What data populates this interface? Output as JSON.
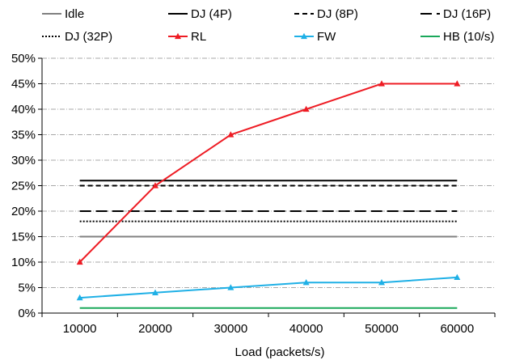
{
  "chart_data": {
    "type": "line",
    "title": "",
    "xlabel": "Load (packets/s)",
    "ylabel": "",
    "x": [
      10000,
      20000,
      30000,
      40000,
      50000,
      60000
    ],
    "x_tick_labels": [
      "10000",
      "20000",
      "30000",
      "40000",
      "50000",
      "60000"
    ],
    "ylim": [
      0,
      50
    ],
    "y_unit": "%",
    "y_ticks": [
      0,
      5,
      10,
      15,
      20,
      25,
      30,
      35,
      40,
      45,
      50
    ],
    "y_tick_labels": [
      "0%",
      "5%",
      "10%",
      "15%",
      "20%",
      "25%",
      "30%",
      "35%",
      "40%",
      "45%",
      "50%"
    ],
    "grid": "horizontal dash-dot",
    "legend_placement": "top",
    "series": [
      {
        "name": "Idle",
        "values": [
          15,
          15,
          15,
          15,
          15,
          15
        ],
        "color": "#808080",
        "dash": "solid",
        "marker": "none"
      },
      {
        "name": "DJ (4P)",
        "values": [
          26,
          26,
          26,
          26,
          26,
          26
        ],
        "color": "#000000",
        "dash": "solid",
        "marker": "none"
      },
      {
        "name": "DJ (8P)",
        "values": [
          25,
          25,
          25,
          25,
          25,
          25
        ],
        "color": "#000000",
        "dash": "short-dash",
        "marker": "none"
      },
      {
        "name": "DJ (16P)",
        "values": [
          20,
          20,
          20,
          20,
          20,
          20
        ],
        "color": "#000000",
        "dash": "long-dash",
        "marker": "none"
      },
      {
        "name": "DJ (32P)",
        "values": [
          18,
          18,
          18,
          18,
          18,
          18
        ],
        "color": "#000000",
        "dash": "dotted",
        "marker": "none"
      },
      {
        "name": "RL",
        "values": [
          10,
          25,
          35,
          40,
          45,
          45
        ],
        "color": "#ee1c24",
        "dash": "solid",
        "marker": "triangle"
      },
      {
        "name": "FW",
        "values": [
          3,
          4,
          5,
          6,
          6,
          7
        ],
        "color": "#1fb0e6",
        "dash": "solid",
        "marker": "triangle"
      },
      {
        "name": "HB (10/s)",
        "values": [
          1,
          1,
          1,
          1,
          1,
          1
        ],
        "color": "#1aa85a",
        "dash": "solid",
        "marker": "none"
      }
    ]
  }
}
